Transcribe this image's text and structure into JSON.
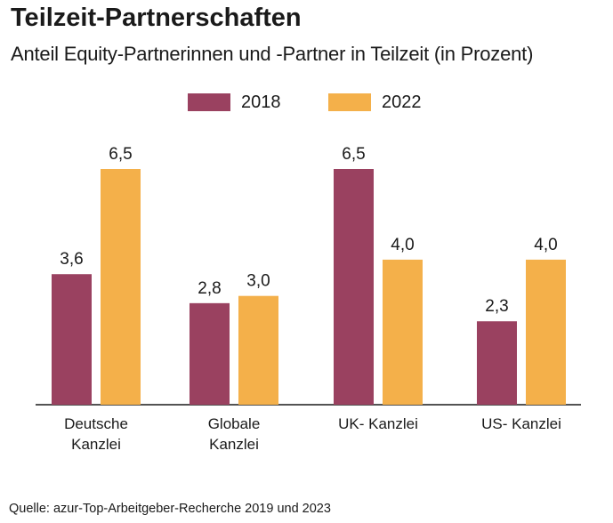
{
  "title": "Teilzeit-Partnerschaften",
  "subtitle": "Anteil Equity-Partnerinnen und -Partner in Teilzeit (in Prozent)",
  "source": "Quelle: azur-Top-Arbeitgeber-Recherche 2019 und 2023",
  "colors": {
    "s2018": "#9a4160",
    "s2022": "#f4b04a",
    "axis": "#1a1a1a"
  },
  "chart_data": {
    "type": "bar",
    "categories": [
      [
        "Deutsche",
        "Kanzlei"
      ],
      [
        "Globale",
        "Kanzlei"
      ],
      [
        "UK- Kanzlei"
      ],
      [
        "US- Kanzlei"
      ]
    ],
    "series": [
      {
        "name": "2018",
        "values": [
          3.6,
          2.8,
          6.5,
          2.3
        ],
        "labels": [
          "3,6",
          "2,8",
          "6,5",
          "2,3"
        ]
      },
      {
        "name": "2022",
        "values": [
          6.5,
          3.0,
          4.0,
          4.0
        ],
        "labels": [
          "6,5",
          "3,0",
          "4,0",
          "4,0"
        ]
      }
    ],
    "ylim": [
      0,
      7
    ],
    "grid": false,
    "legend": "top-center"
  }
}
